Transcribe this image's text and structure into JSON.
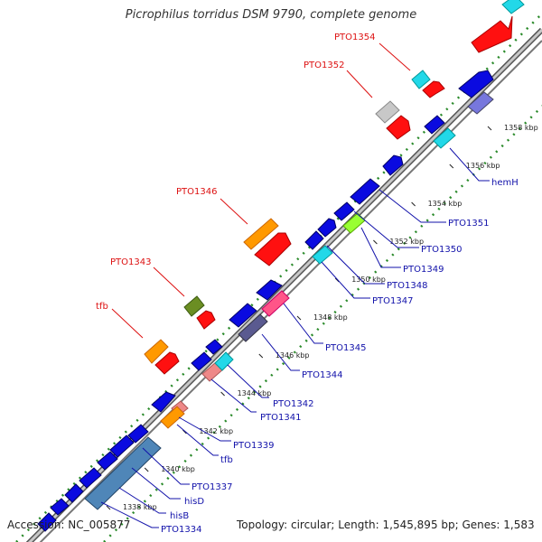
{
  "title": "Picrophilus torridus DSM 9790, complete genome",
  "footer": {
    "accession": "Accession: NC_005877",
    "info": "Topology: circular; Length: 1,545,895 bp; Genes: 1,583"
  },
  "colors": {
    "blue": "#0a0ae0",
    "red": "#ff1010",
    "cyan": "#22d8e8",
    "orange": "#ff9900",
    "gray": "#c8c8c8",
    "olive": "#6b8e23",
    "lightgreen": "#99ff33",
    "salmon": "#ee8888",
    "steelblue": "#4f86b8",
    "slate": "#7777dd",
    "axis": "#888888",
    "dots": "#2a8a2a"
  },
  "ticks": [
    {
      "label": "1338 kbp",
      "t": 0.06
    },
    {
      "label": "1340 kbp",
      "t": 0.185
    },
    {
      "label": "1342 kbp",
      "t": 0.31
    },
    {
      "label": "1344 kbp",
      "t": 0.435
    },
    {
      "label": "1346 kbp",
      "t": 0.56
    },
    {
      "label": "1348 kbp",
      "t": 0.685
    },
    {
      "label": "1350 kbp",
      "t": 0.81
    },
    {
      "label": "1352 kbp",
      "t": 0.935
    },
    {
      "label": "1354 kbp",
      "t": 1.06
    },
    {
      "label": "1356 kbp",
      "t": 1.185
    },
    {
      "label": "1358 kbp",
      "t": 1.31
    }
  ],
  "labels_outer": [
    {
      "text": "PTO1354",
      "color": "red"
    },
    {
      "text": "PTO1352",
      "color": "red"
    },
    {
      "text": "PTO1346",
      "color": "red"
    },
    {
      "text": "PTO1343",
      "color": "red"
    },
    {
      "text": "tfb",
      "color": "red"
    }
  ],
  "labels_inner": [
    {
      "text": "hemH"
    },
    {
      "text": "PTO1351"
    },
    {
      "text": "PTO1350"
    },
    {
      "text": "PTO1349"
    },
    {
      "text": "PTO1348"
    },
    {
      "text": "PTO1347"
    },
    {
      "text": "PTO1345"
    },
    {
      "text": "PTO1344"
    },
    {
      "text": "PTO1342"
    },
    {
      "text": "PTO1341"
    },
    {
      "text": "PTO1339"
    },
    {
      "text": "tfb"
    },
    {
      "text": "PTO1337"
    },
    {
      "text": "hisD"
    },
    {
      "text": "hisB"
    },
    {
      "text": "PTO1334"
    }
  ]
}
